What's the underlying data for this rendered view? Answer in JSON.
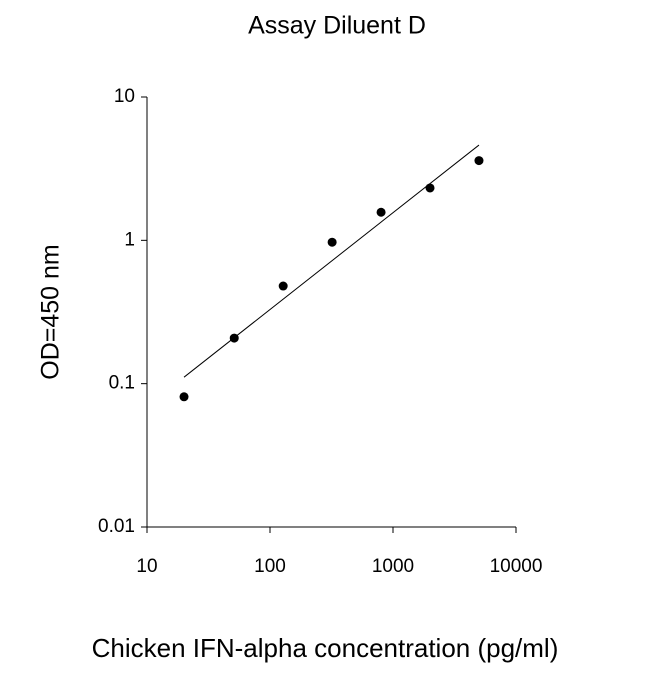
{
  "chart_data": {
    "type": "scatter",
    "title": "Assay Diluent D",
    "x_label": "Chicken IFN-alpha concentration (pg/ml)",
    "y_label": "OD=450 nm",
    "xscale": "log",
    "yscale": "log",
    "grid": false,
    "xlim": [
      10,
      10000
    ],
    "xticks": [
      10,
      100,
      1000,
      10000
    ],
    "ylim": [
      0.01,
      10
    ],
    "yticks": [
      0.01,
      0.1,
      1,
      10
    ],
    "series": [
      {
        "color": "#000000",
        "mode": "markers",
        "x": [
          20,
          51.2,
          128,
          320,
          800,
          2000,
          5000
        ],
        "values": [
          0.081,
          0.208,
          0.48,
          0.97,
          1.57,
          2.32,
          3.6
        ]
      },
      {
        "color": "#000000",
        "mode": "line",
        "x": [
          20,
          5000
        ],
        "values": [
          0.111,
          4.62
        ]
      }
    ]
  }
}
